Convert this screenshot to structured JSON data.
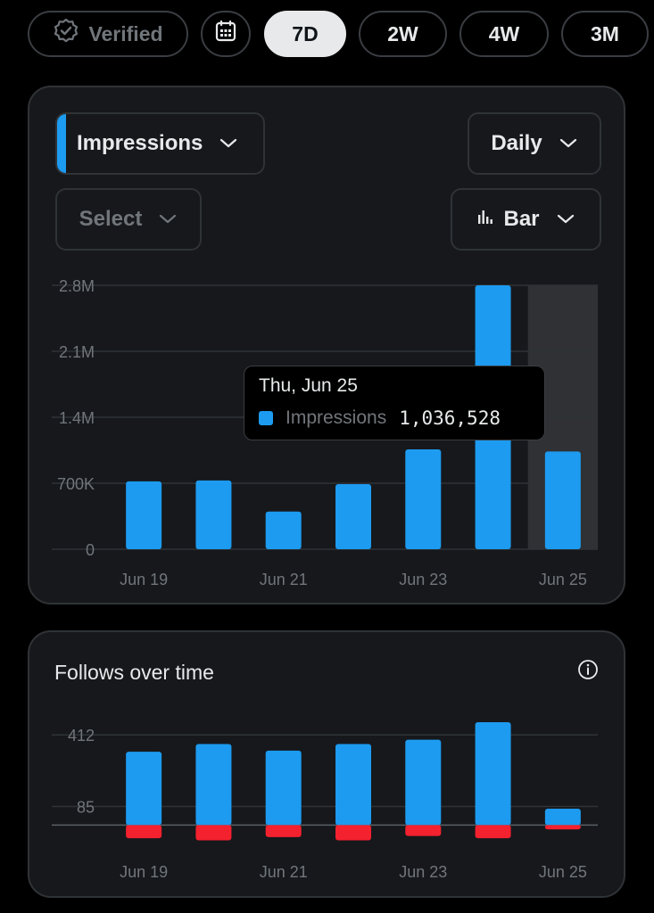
{
  "filters": {
    "verified_label": "Verified",
    "calendar_icon": "calendar-icon",
    "ranges": [
      {
        "label": "7D",
        "active": true
      },
      {
        "label": "2W",
        "active": false
      },
      {
        "label": "4W",
        "active": false
      },
      {
        "label": "3M",
        "active": false
      }
    ]
  },
  "impressions_card": {
    "metric_dropdown": "Impressions",
    "interval_dropdown": "Daily",
    "secondary_dropdown": "Select",
    "chart_type_dropdown": "Bar",
    "tooltip": {
      "date": "Thu, Jun 25",
      "series": "Impressions",
      "value": "1,036,528"
    }
  },
  "follows_card": {
    "title": "Follows over time"
  },
  "colors": {
    "accent_blue": "#1d9bf0",
    "unfollow_red": "#f4212e",
    "card_bg": "#16181c",
    "border": "#2f3336",
    "muted_text": "#71767b"
  },
  "chart_data": [
    {
      "type": "bar",
      "categories": [
        "Jun 19",
        "Jun 20",
        "Jun 21",
        "Jun 22",
        "Jun 23",
        "Jun 24",
        "Jun 25"
      ],
      "x_tick_labels": [
        "Jun 19",
        "Jun 21",
        "Jun 23",
        "Jun 25"
      ],
      "series": [
        {
          "name": "Impressions",
          "values": [
            720000,
            730000,
            400000,
            690000,
            1060000,
            2800000,
            1036528
          ]
        }
      ],
      "y_ticks": [
        0,
        700000,
        1400000,
        2100000,
        2800000
      ],
      "y_tick_labels": [
        "0",
        "700K",
        "1.4M",
        "2.1M",
        "2.8M"
      ],
      "ylim": [
        0,
        2800000
      ],
      "highlighted_category": "Jun 25",
      "grid": true,
      "legend": "none"
    },
    {
      "type": "bar",
      "categories": [
        "Jun 19",
        "Jun 20",
        "Jun 21",
        "Jun 22",
        "Jun 23",
        "Jun 24",
        "Jun 25"
      ],
      "x_tick_labels": [
        "Jun 19",
        "Jun 21",
        "Jun 23",
        "Jun 25"
      ],
      "series": [
        {
          "name": "",
          "color": "#1d9bf0",
          "values": [
            335,
            370,
            340,
            370,
            390,
            470,
            75
          ]
        },
        {
          "name": "",
          "color": "#f4212e",
          "values": [
            -60,
            -70,
            -55,
            -70,
            -50,
            -60,
            -20
          ]
        }
      ],
      "y_ticks": [
        85,
        412
      ],
      "y_tick_labels": [
        "85",
        "412"
      ],
      "ylim": [
        -80,
        470
      ],
      "grid": true,
      "legend": "none"
    }
  ]
}
